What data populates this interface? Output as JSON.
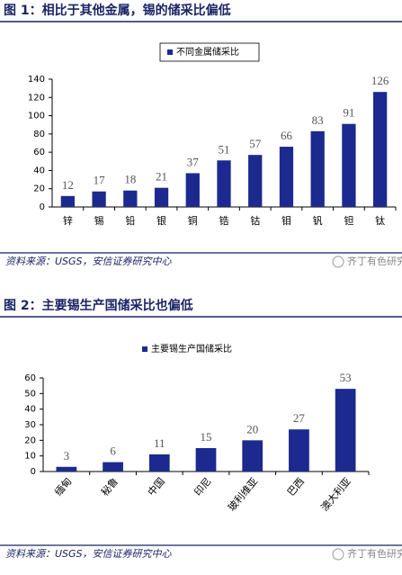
{
  "chart_data": [
    {
      "type": "bar",
      "title": "图 1：相比于其他金属，锡的储采比偏低",
      "categories": [
        "锌",
        "锡",
        "铅",
        "银",
        "铜",
        "锆",
        "钴",
        "钼",
        "钒",
        "钽",
        "钛"
      ],
      "series": [
        {
          "name": "不同金属储采比",
          "color": "#1c2a8f",
          "values": [
            12,
            17,
            18,
            21,
            37,
            51,
            57,
            66,
            83,
            91,
            126
          ]
        }
      ],
      "ylim": [
        0,
        140
      ],
      "yticks": [
        0,
        20,
        40,
        60,
        80,
        100,
        120,
        140
      ],
      "source": "资料来源：USGS，安信证券研究中心",
      "watermark": "齐丁有色研究"
    },
    {
      "type": "bar",
      "title": "图 2：主要锡生产国储采比也偏低",
      "categories": [
        "缅甸",
        "秘鲁",
        "中国",
        "印尼",
        "玻利维亚",
        "巴西",
        "澳大利亚"
      ],
      "series": [
        {
          "name": "主要锡生产国储采比",
          "color": "#1c2a8f",
          "values": [
            3,
            6,
            11,
            15,
            20,
            27,
            53
          ]
        }
      ],
      "ylim": [
        0,
        60
      ],
      "yticks": [
        0,
        10,
        20,
        30,
        40,
        50,
        60
      ],
      "source": "资料来源：USGS，安信证券研究中心",
      "watermark": "齐丁有色研究"
    }
  ]
}
